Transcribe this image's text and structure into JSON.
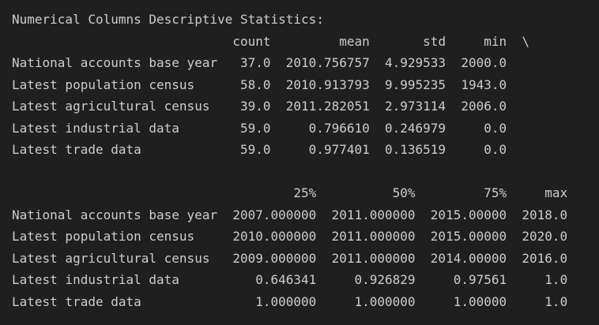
{
  "title": "Numerical Columns Descriptive Statistics:",
  "table1": {
    "columns": [
      "count",
      "mean",
      "std",
      "min"
    ],
    "continuation": "\\",
    "rows": [
      [
        "National accounts base year",
        "37.0",
        "2010.756757",
        "4.929533",
        "2000.0"
      ],
      [
        "Latest population census",
        "58.0",
        "2010.913793",
        "9.995235",
        "1943.0"
      ],
      [
        "Latest agricultural census",
        "39.0",
        "2011.282051",
        "2.973114",
        "2006.0"
      ],
      [
        "Latest industrial data",
        "59.0",
        "0.796610",
        "0.246979",
        "0.0"
      ],
      [
        "Latest trade data",
        "59.0",
        "0.977401",
        "0.136519",
        "0.0"
      ]
    ]
  },
  "table2": {
    "columns": [
      "25%",
      "50%",
      "75%",
      "max"
    ],
    "rows": [
      [
        "National accounts base year",
        "2007.000000",
        "2011.000000",
        "2015.00000",
        "2018.0"
      ],
      [
        "Latest population census",
        "2010.000000",
        "2011.000000",
        "2015.00000",
        "2020.0"
      ],
      [
        "Latest agricultural census",
        "2009.000000",
        "2011.000000",
        "2014.00000",
        "2016.0"
      ],
      [
        "Latest industrial data",
        "0.646341",
        "0.926829",
        "0.97561",
        "1.0"
      ],
      [
        "Latest trade data",
        "1.000000",
        "1.000000",
        "1.00000",
        "1.0"
      ]
    ]
  }
}
